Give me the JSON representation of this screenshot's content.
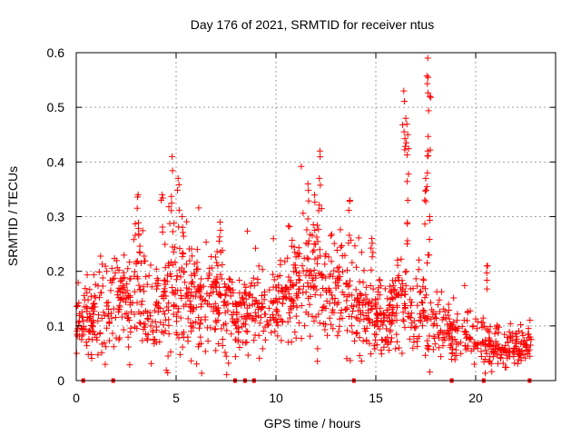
{
  "chart_data": {
    "type": "scatter",
    "title": "Day 176 of 2021, SRMTID for receiver ntus",
    "xlabel": "GPS time / hours",
    "ylabel": "SRMTID / TECUs",
    "xlim": [
      0,
      24
    ],
    "ylim": [
      0,
      0.6
    ],
    "x_ticks": [
      0,
      5,
      10,
      15,
      20
    ],
    "x_tick_labels": [
      "0",
      "5",
      "10",
      "15",
      "20"
    ],
    "y_ticks": [
      0,
      0.1,
      0.2,
      0.3,
      0.4,
      0.5,
      0.6
    ],
    "y_tick_labels": [
      "0",
      "0.1",
      "0.2",
      "0.3",
      "0.4",
      "0.5",
      "0.6"
    ],
    "grid": true,
    "marker": "+",
    "color": "#ff0000",
    "series": [
      {
        "name": "SRMTID",
        "note": "approximate envelope of the dense scatter; [hour, typical, spread]",
        "envelope": [
          [
            0.0,
            0.1,
            0.04
          ],
          [
            0.5,
            0.11,
            0.04
          ],
          [
            1.0,
            0.12,
            0.05
          ],
          [
            1.5,
            0.14,
            0.05
          ],
          [
            2.0,
            0.15,
            0.05
          ],
          [
            2.5,
            0.15,
            0.05
          ],
          [
            3.0,
            0.17,
            0.07
          ],
          [
            3.5,
            0.15,
            0.06
          ],
          [
            4.0,
            0.14,
            0.07
          ],
          [
            4.5,
            0.16,
            0.07
          ],
          [
            5.0,
            0.18,
            0.08
          ],
          [
            5.5,
            0.15,
            0.06
          ],
          [
            6.0,
            0.14,
            0.06
          ],
          [
            6.5,
            0.15,
            0.07
          ],
          [
            7.0,
            0.14,
            0.06
          ],
          [
            7.5,
            0.13,
            0.06
          ],
          [
            8.0,
            0.11,
            0.04
          ],
          [
            8.5,
            0.12,
            0.04
          ],
          [
            9.0,
            0.13,
            0.05
          ],
          [
            9.5,
            0.14,
            0.05
          ],
          [
            10.0,
            0.15,
            0.05
          ],
          [
            10.5,
            0.16,
            0.05
          ],
          [
            11.0,
            0.17,
            0.06
          ],
          [
            11.5,
            0.18,
            0.07
          ],
          [
            12.0,
            0.2,
            0.08
          ],
          [
            12.5,
            0.18,
            0.06
          ],
          [
            13.0,
            0.17,
            0.06
          ],
          [
            13.5,
            0.16,
            0.06
          ],
          [
            14.0,
            0.13,
            0.05
          ],
          [
            14.5,
            0.12,
            0.05
          ],
          [
            15.0,
            0.11,
            0.04
          ],
          [
            15.5,
            0.12,
            0.05
          ],
          [
            16.0,
            0.13,
            0.05
          ],
          [
            16.5,
            0.14,
            0.06
          ],
          [
            17.0,
            0.12,
            0.05
          ],
          [
            17.5,
            0.11,
            0.05
          ],
          [
            18.0,
            0.1,
            0.05
          ],
          [
            18.5,
            0.09,
            0.04
          ],
          [
            19.0,
            0.08,
            0.03
          ],
          [
            19.5,
            0.08,
            0.03
          ],
          [
            20.0,
            0.07,
            0.03
          ],
          [
            20.5,
            0.06,
            0.03
          ],
          [
            21.0,
            0.06,
            0.02
          ],
          [
            21.5,
            0.06,
            0.02
          ],
          [
            22.0,
            0.06,
            0.02
          ],
          [
            22.5,
            0.06,
            0.02
          ],
          [
            22.8,
            0.06,
            0.02
          ]
        ],
        "peaks": [
          [
            3.1,
            0.34
          ],
          [
            4.3,
            0.34
          ],
          [
            4.8,
            0.41
          ],
          [
            5.1,
            0.37
          ],
          [
            5.3,
            0.3
          ],
          [
            7.2,
            0.29
          ],
          [
            11.6,
            0.36
          ],
          [
            12.2,
            0.42
          ],
          [
            13.7,
            0.33
          ],
          [
            14.8,
            0.26
          ],
          [
            16.4,
            0.53
          ],
          [
            16.5,
            0.48
          ],
          [
            16.6,
            0.45
          ],
          [
            16.6,
            0.33
          ],
          [
            17.6,
            0.59
          ],
          [
            17.7,
            0.52
          ],
          [
            17.6,
            0.42
          ],
          [
            17.5,
            0.37
          ],
          [
            17.7,
            0.3
          ],
          [
            20.6,
            0.21
          ]
        ]
      }
    ],
    "bottom_markers_x": [
      0.35,
      1.85,
      7.95,
      8.45,
      8.9,
      13.9,
      18.8,
      20.4,
      22.7
    ]
  }
}
